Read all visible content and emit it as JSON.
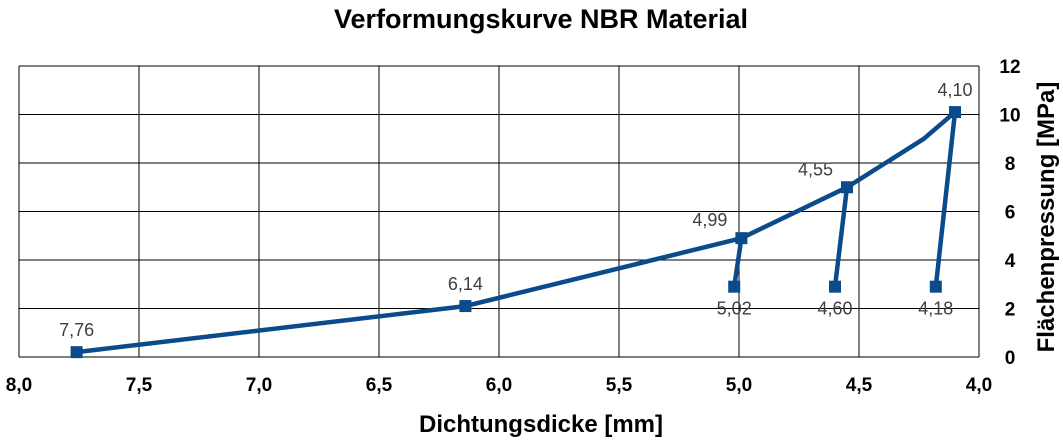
{
  "chart_data": {
    "type": "scatter",
    "title": "Verformungskurve NBR Material",
    "xlabel": "Dichtungsdicke [mm]",
    "ylabel": "Flächenpressung [MPa]",
    "xlim": [
      8.0,
      4.0
    ],
    "ylim": [
      0,
      12
    ],
    "x_reversed": true,
    "y_axis_position": "right",
    "grid": true,
    "x_tick_labels": [
      "8,0",
      "7,5",
      "7,0",
      "6,5",
      "6,0",
      "5,5",
      "5,0",
      "4,5",
      "4,0"
    ],
    "x_ticks": [
      8.0,
      7.5,
      7.0,
      6.5,
      6.0,
      5.5,
      5.0,
      4.5,
      4.0
    ],
    "y_tick_labels": [
      "0",
      "2",
      "4",
      "6",
      "8",
      "10",
      "12"
    ],
    "y_ticks": [
      0,
      2,
      4,
      6,
      8,
      10,
      12
    ],
    "series": [
      {
        "values": [
          {
            "x": 7.76,
            "y": 0.2
          },
          {
            "x": 6.14,
            "y": 2.1
          },
          {
            "x": 4.99,
            "y": 4.9
          },
          {
            "x": 4.55,
            "y": 7.0
          },
          {
            "x": 4.23,
            "y": 9.0
          },
          {
            "x": 4.1,
            "y": 10.1
          }
        ]
      },
      {
        "values": [
          {
            "x": 4.99,
            "y": 4.9
          },
          {
            "x": 5.02,
            "y": 2.9
          }
        ]
      },
      {
        "values": [
          {
            "x": 4.55,
            "y": 7.0
          },
          {
            "x": 4.6,
            "y": 2.9
          }
        ]
      },
      {
        "values": [
          {
            "x": 4.1,
            "y": 10.1
          },
          {
            "x": 4.18,
            "y": 2.9
          }
        ]
      }
    ],
    "markers": [
      {
        "x": 7.76,
        "y": 0.2,
        "label": "7,76",
        "label_pos": "above"
      },
      {
        "x": 6.14,
        "y": 2.1,
        "label": "6,14",
        "label_pos": "above"
      },
      {
        "x": 4.99,
        "y": 4.9,
        "label": "4,99",
        "label_pos": "above-left"
      },
      {
        "x": 4.55,
        "y": 7.0,
        "label": "4,55",
        "label_pos": "above-left"
      },
      {
        "x": 4.1,
        "y": 10.1,
        "label": "4,10",
        "label_pos": "above"
      },
      {
        "x": 5.02,
        "y": 2.9,
        "label": "5,02",
        "label_pos": "below"
      },
      {
        "x": 4.6,
        "y": 2.9,
        "label": "4,60",
        "label_pos": "below"
      },
      {
        "x": 4.18,
        "y": 2.9,
        "label": "4,18",
        "label_pos": "below"
      }
    ],
    "colors": {
      "series": "#0B4A8B",
      "grid": "#000000",
      "data_label": "#404040"
    }
  }
}
